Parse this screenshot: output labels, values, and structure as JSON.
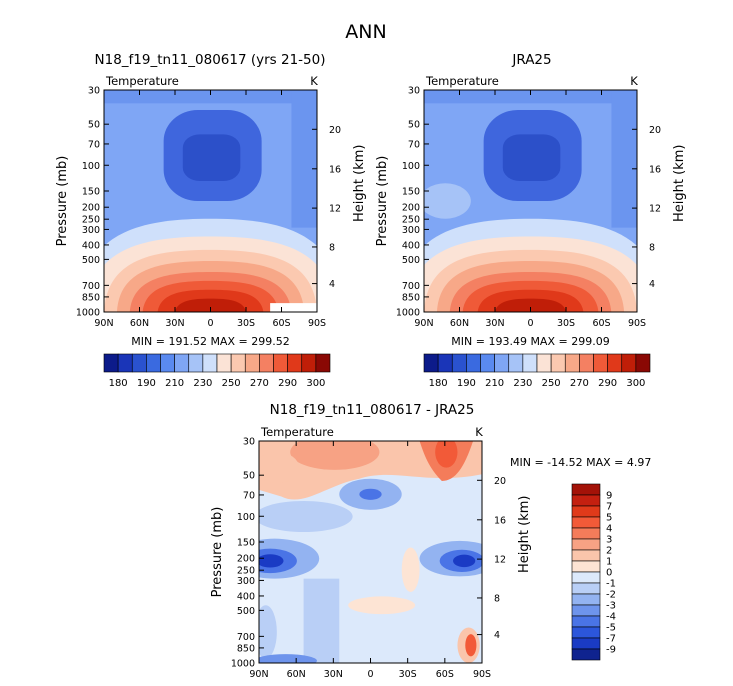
{
  "figure_title": "ANN",
  "chart_data": [
    {
      "type": "contour",
      "title": "N18_f19_tn11_080617 (yrs 21-50)",
      "variable": "Temperature",
      "units": "K",
      "xlabel": "",
      "ylabel": "Pressure (mb)",
      "y2label": "Height (km)",
      "x_ticks": [
        "90N",
        "60N",
        "30N",
        "0",
        "30S",
        "60S",
        "90S"
      ],
      "y_ticks": [
        "30",
        "50",
        "70",
        "100",
        "150",
        "200",
        "250",
        "300",
        "400",
        "500",
        "700",
        "850",
        "1000"
      ],
      "height_ticks": [
        "20",
        "16",
        "12",
        "8",
        "4"
      ],
      "stats_text": "MIN = 191.52   MAX = 299.52",
      "min": 191.52,
      "max": 299.52,
      "colorbar_labels": [
        "180",
        "190",
        "210",
        "230",
        "250",
        "270",
        "290",
        "300"
      ],
      "colorbar_colors": [
        "#0c1b8a",
        "#1a35b8",
        "#2a52cf",
        "#3a6ae0",
        "#5a8af0",
        "#7fa6f5",
        "#a6c3f7",
        "#cfe0fb",
        "#fbe3d6",
        "#fbc9b0",
        "#f7a888",
        "#f48062",
        "#ef5a38",
        "#e0391a",
        "#c01e08",
        "#8a0804"
      ],
      "region_colors": {
        "background": "#7fa6f5",
        "upper_band": "#6b95ef",
        "cold_core": "#3f66dd",
        "cold_center": "#2c50c9",
        "warm_layers": [
          "#cfe0fb",
          "#fbe3d6",
          "#fbc9b0",
          "#f7a888",
          "#f48062",
          "#ef5a38",
          "#e0391a",
          "#c01e08"
        ]
      }
    },
    {
      "type": "contour",
      "title": "JRA25",
      "variable": "Temperature",
      "units": "K",
      "ylabel": "Pressure (mb)",
      "y2label": "Height (km)",
      "x_ticks": [
        "90N",
        "60N",
        "30N",
        "0",
        "30S",
        "60S",
        "90S"
      ],
      "y_ticks": [
        "30",
        "50",
        "70",
        "100",
        "150",
        "200",
        "250",
        "300",
        "400",
        "500",
        "700",
        "850",
        "1000"
      ],
      "height_ticks": [
        "20",
        "16",
        "12",
        "8",
        "4"
      ],
      "stats_text": "MIN = 193.49   MAX = 299.09",
      "min": 193.49,
      "max": 299.09,
      "colorbar_labels": [
        "180",
        "190",
        "210",
        "230",
        "250",
        "270",
        "290",
        "300"
      ]
    },
    {
      "type": "contour",
      "title": "N18_f19_tn11_080617 - JRA25",
      "variable": "Temperature",
      "units": "K",
      "ylabel": "Pressure (mb)",
      "y2label": "Height (km)",
      "x_ticks": [
        "90N",
        "60N",
        "30N",
        "0",
        "30S",
        "60S",
        "90S"
      ],
      "y_ticks": [
        "30",
        "50",
        "70",
        "100",
        "150",
        "200",
        "250",
        "300",
        "400",
        "500",
        "700",
        "850",
        "1000"
      ],
      "height_ticks": [
        "20",
        "16",
        "12",
        "8",
        "4"
      ],
      "stats_text": "MIN = -14.52   MAX =    4.97",
      "min": -14.52,
      "max": 4.97,
      "colorbar_labels": [
        "9",
        "7",
        "5",
        "4",
        "3",
        "2",
        "1",
        "0",
        "-1",
        "-2",
        "-3",
        "-4",
        "-5",
        "-7",
        "-9"
      ],
      "colorbar_colors": [
        "#a31208",
        "#c42010",
        "#e03a1a",
        "#f25a38",
        "#f47c5a",
        "#f7a284",
        "#fac5ab",
        "#fde4d4",
        "#dce9fb",
        "#b9cff6",
        "#93b3f1",
        "#6e94ec",
        "#4a74e6",
        "#2c56db",
        "#1a3bc4",
        "#0f238f"
      ]
    }
  ]
}
